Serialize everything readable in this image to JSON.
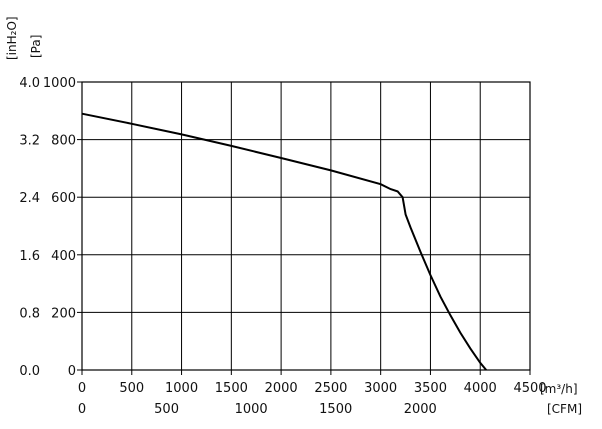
{
  "chart_data": {
    "type": "line",
    "title": "",
    "y_left_unit": "[inH₂O]",
    "y_right_unit": "[Pa]",
    "x_top_unit": "[m³/h]",
    "x_bottom_unit": "[CFM]",
    "xlim": [
      0,
      4500
    ],
    "ylim": [
      0,
      1000
    ],
    "grid": true,
    "x_ticks_m3h": [
      "0",
      "500",
      "1000",
      "1500",
      "2000",
      "2500",
      "3000",
      "3500",
      "4000",
      "4500"
    ],
    "x_ticks_m3h_values": [
      0,
      500,
      1000,
      1500,
      2000,
      2500,
      3000,
      3500,
      4000,
      4500
    ],
    "x_ticks_cfm": [
      "0",
      "500",
      "1000",
      "1500",
      "2000"
    ],
    "x_ticks_cfm_values": [
      0,
      500,
      1000,
      1500,
      2000
    ],
    "y_ticks_pa": [
      "0",
      "200",
      "400",
      "600",
      "800",
      "1000"
    ],
    "y_ticks_pa_values": [
      0,
      200,
      400,
      600,
      800,
      1000
    ],
    "y_ticks_inh2o": [
      "0.0",
      "0.8",
      "1.6",
      "2.4",
      "3.2",
      "4.0"
    ],
    "series": [
      {
        "x": [
          0,
          500,
          1000,
          1500,
          2000,
          2500,
          3000,
          3100,
          3170,
          3220,
          3240,
          3250,
          3300,
          3400,
          3500,
          3600,
          3700,
          3800,
          3900,
          4000,
          4060
        ],
        "y": [
          890,
          855,
          818,
          778,
          736,
          693,
          645,
          628,
          620,
          600,
          560,
          540,
          495,
          410,
          330,
          255,
          190,
          130,
          75,
          25,
          0
        ]
      }
    ]
  }
}
